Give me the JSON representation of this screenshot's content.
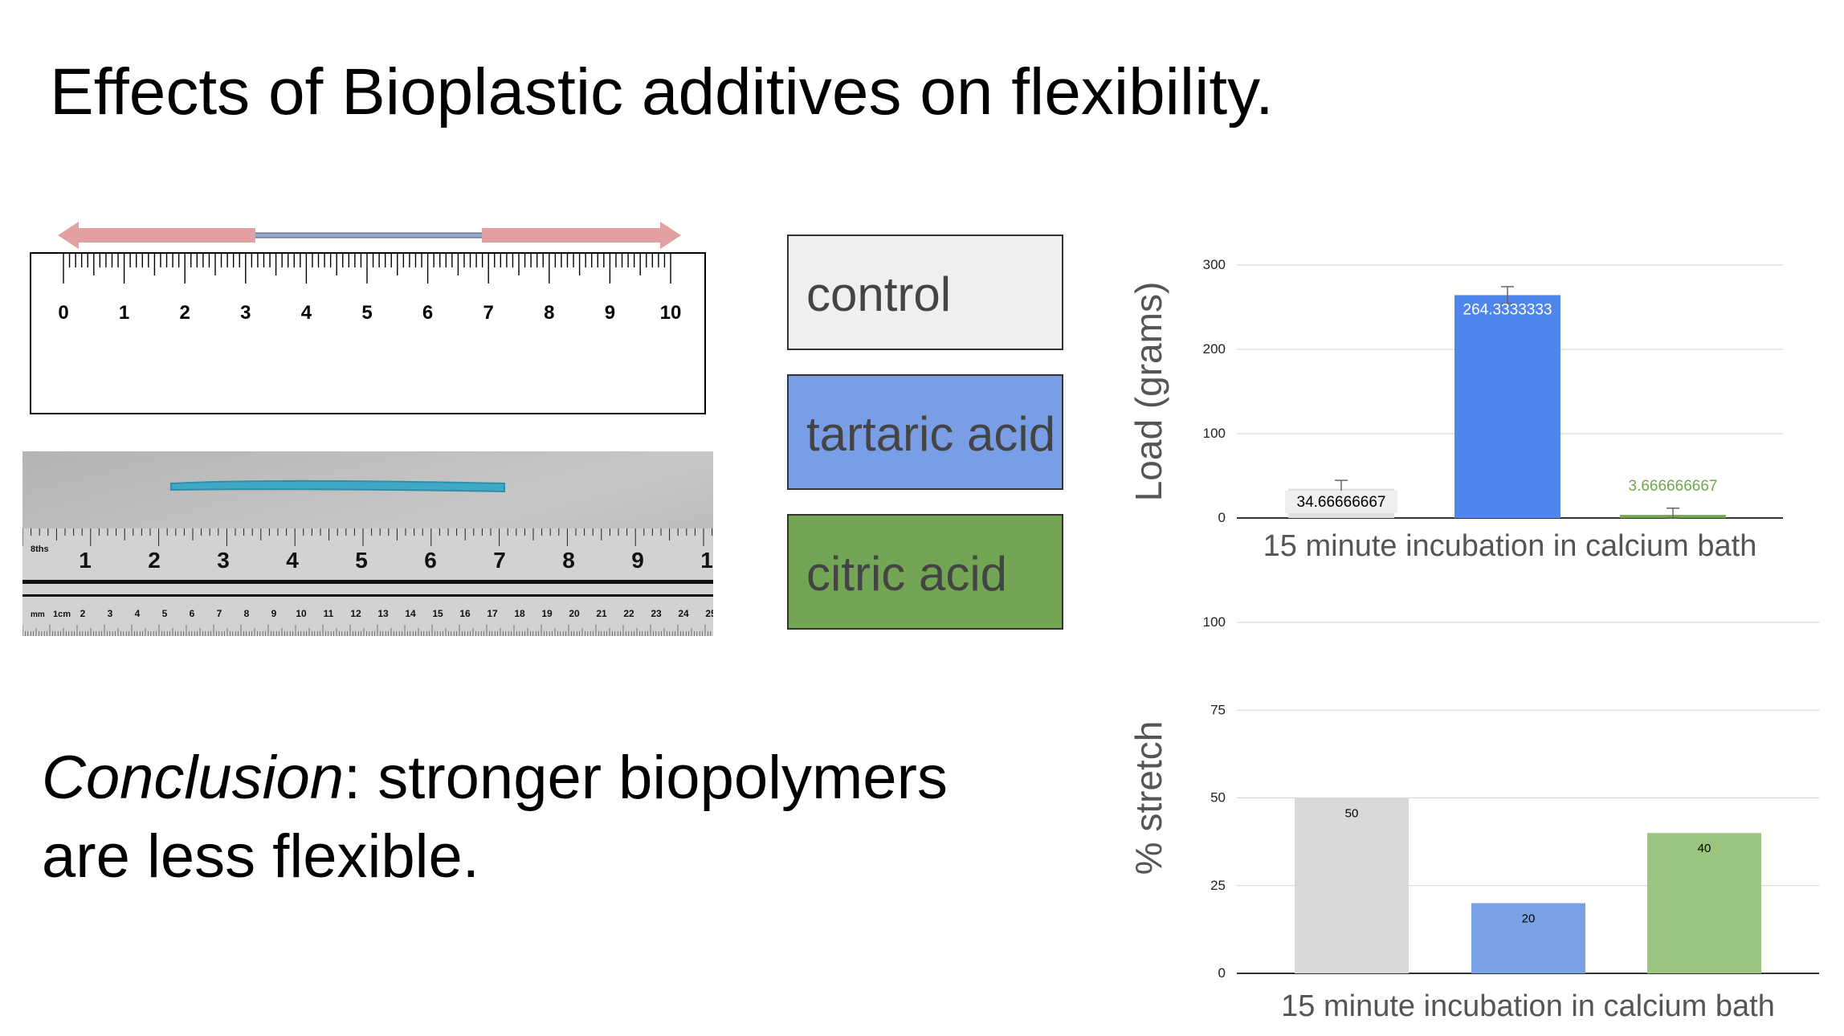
{
  "slide": {
    "title": "Effects of Bioplastic additives on flexibility.",
    "conclusion_label": "Conclusion",
    "conclusion_line1": ": stronger biopolymers",
    "conclusion_line2": "are less flexible."
  },
  "ruler": {
    "labels": [
      "0",
      "1",
      "2",
      "3",
      "4",
      "5",
      "6",
      "7",
      "8",
      "9",
      "10"
    ]
  },
  "photo_ruler": {
    "inch_label": "8ths",
    "inch_numbers": [
      "1",
      "2",
      "3",
      "4",
      "5",
      "6",
      "7",
      "8",
      "9",
      "1"
    ],
    "cm_label": "mm",
    "cm_first": "1cm",
    "cm_numbers": [
      "2",
      "3",
      "4",
      "5",
      "6",
      "7",
      "8",
      "9",
      "10",
      "11",
      "12",
      "13",
      "14",
      "15",
      "16",
      "17",
      "18",
      "19",
      "20",
      "21",
      "22",
      "23",
      "24",
      "25"
    ]
  },
  "legend": {
    "items": [
      {
        "label": "control",
        "color": "#efefef"
      },
      {
        "label": "tartaric acid",
        "color": "#799ee6"
      },
      {
        "label": "citric acid",
        "color": "#72a655"
      }
    ]
  },
  "chart_data": [
    {
      "type": "bar",
      "categories": [
        "control",
        "tartaric acid",
        "citric acid"
      ],
      "values": [
        34.66666667,
        264.3333333,
        3.666666667
      ],
      "data_labels": [
        "34.66666667",
        "264.3333333",
        "3.666666667"
      ],
      "error_bars": [
        10,
        10,
        8
      ],
      "colors": [
        "#e0e0e0",
        "#5085ec",
        "#6fa84f"
      ],
      "xlabel": "15 minute incubation in calcium bath",
      "ylabel": "Load (grams)",
      "ylim": [
        0,
        300
      ],
      "yticks": [
        "0",
        "100",
        "200",
        "300"
      ],
      "grid": true
    },
    {
      "type": "bar",
      "categories": [
        "control",
        "tartaric acid",
        "citric acid"
      ],
      "values": [
        50,
        20,
        40
      ],
      "data_labels": [
        "50",
        "20",
        "40"
      ],
      "colors": [
        "#d9d9d9",
        "#7aa0e6",
        "#9bc47e"
      ],
      "xlabel": "15 minute incubation in calcium bath",
      "ylabel": "% stretch",
      "ylim": [
        0,
        100
      ],
      "yticks": [
        "0",
        "25",
        "50",
        "75",
        "100"
      ],
      "grid": true
    }
  ]
}
